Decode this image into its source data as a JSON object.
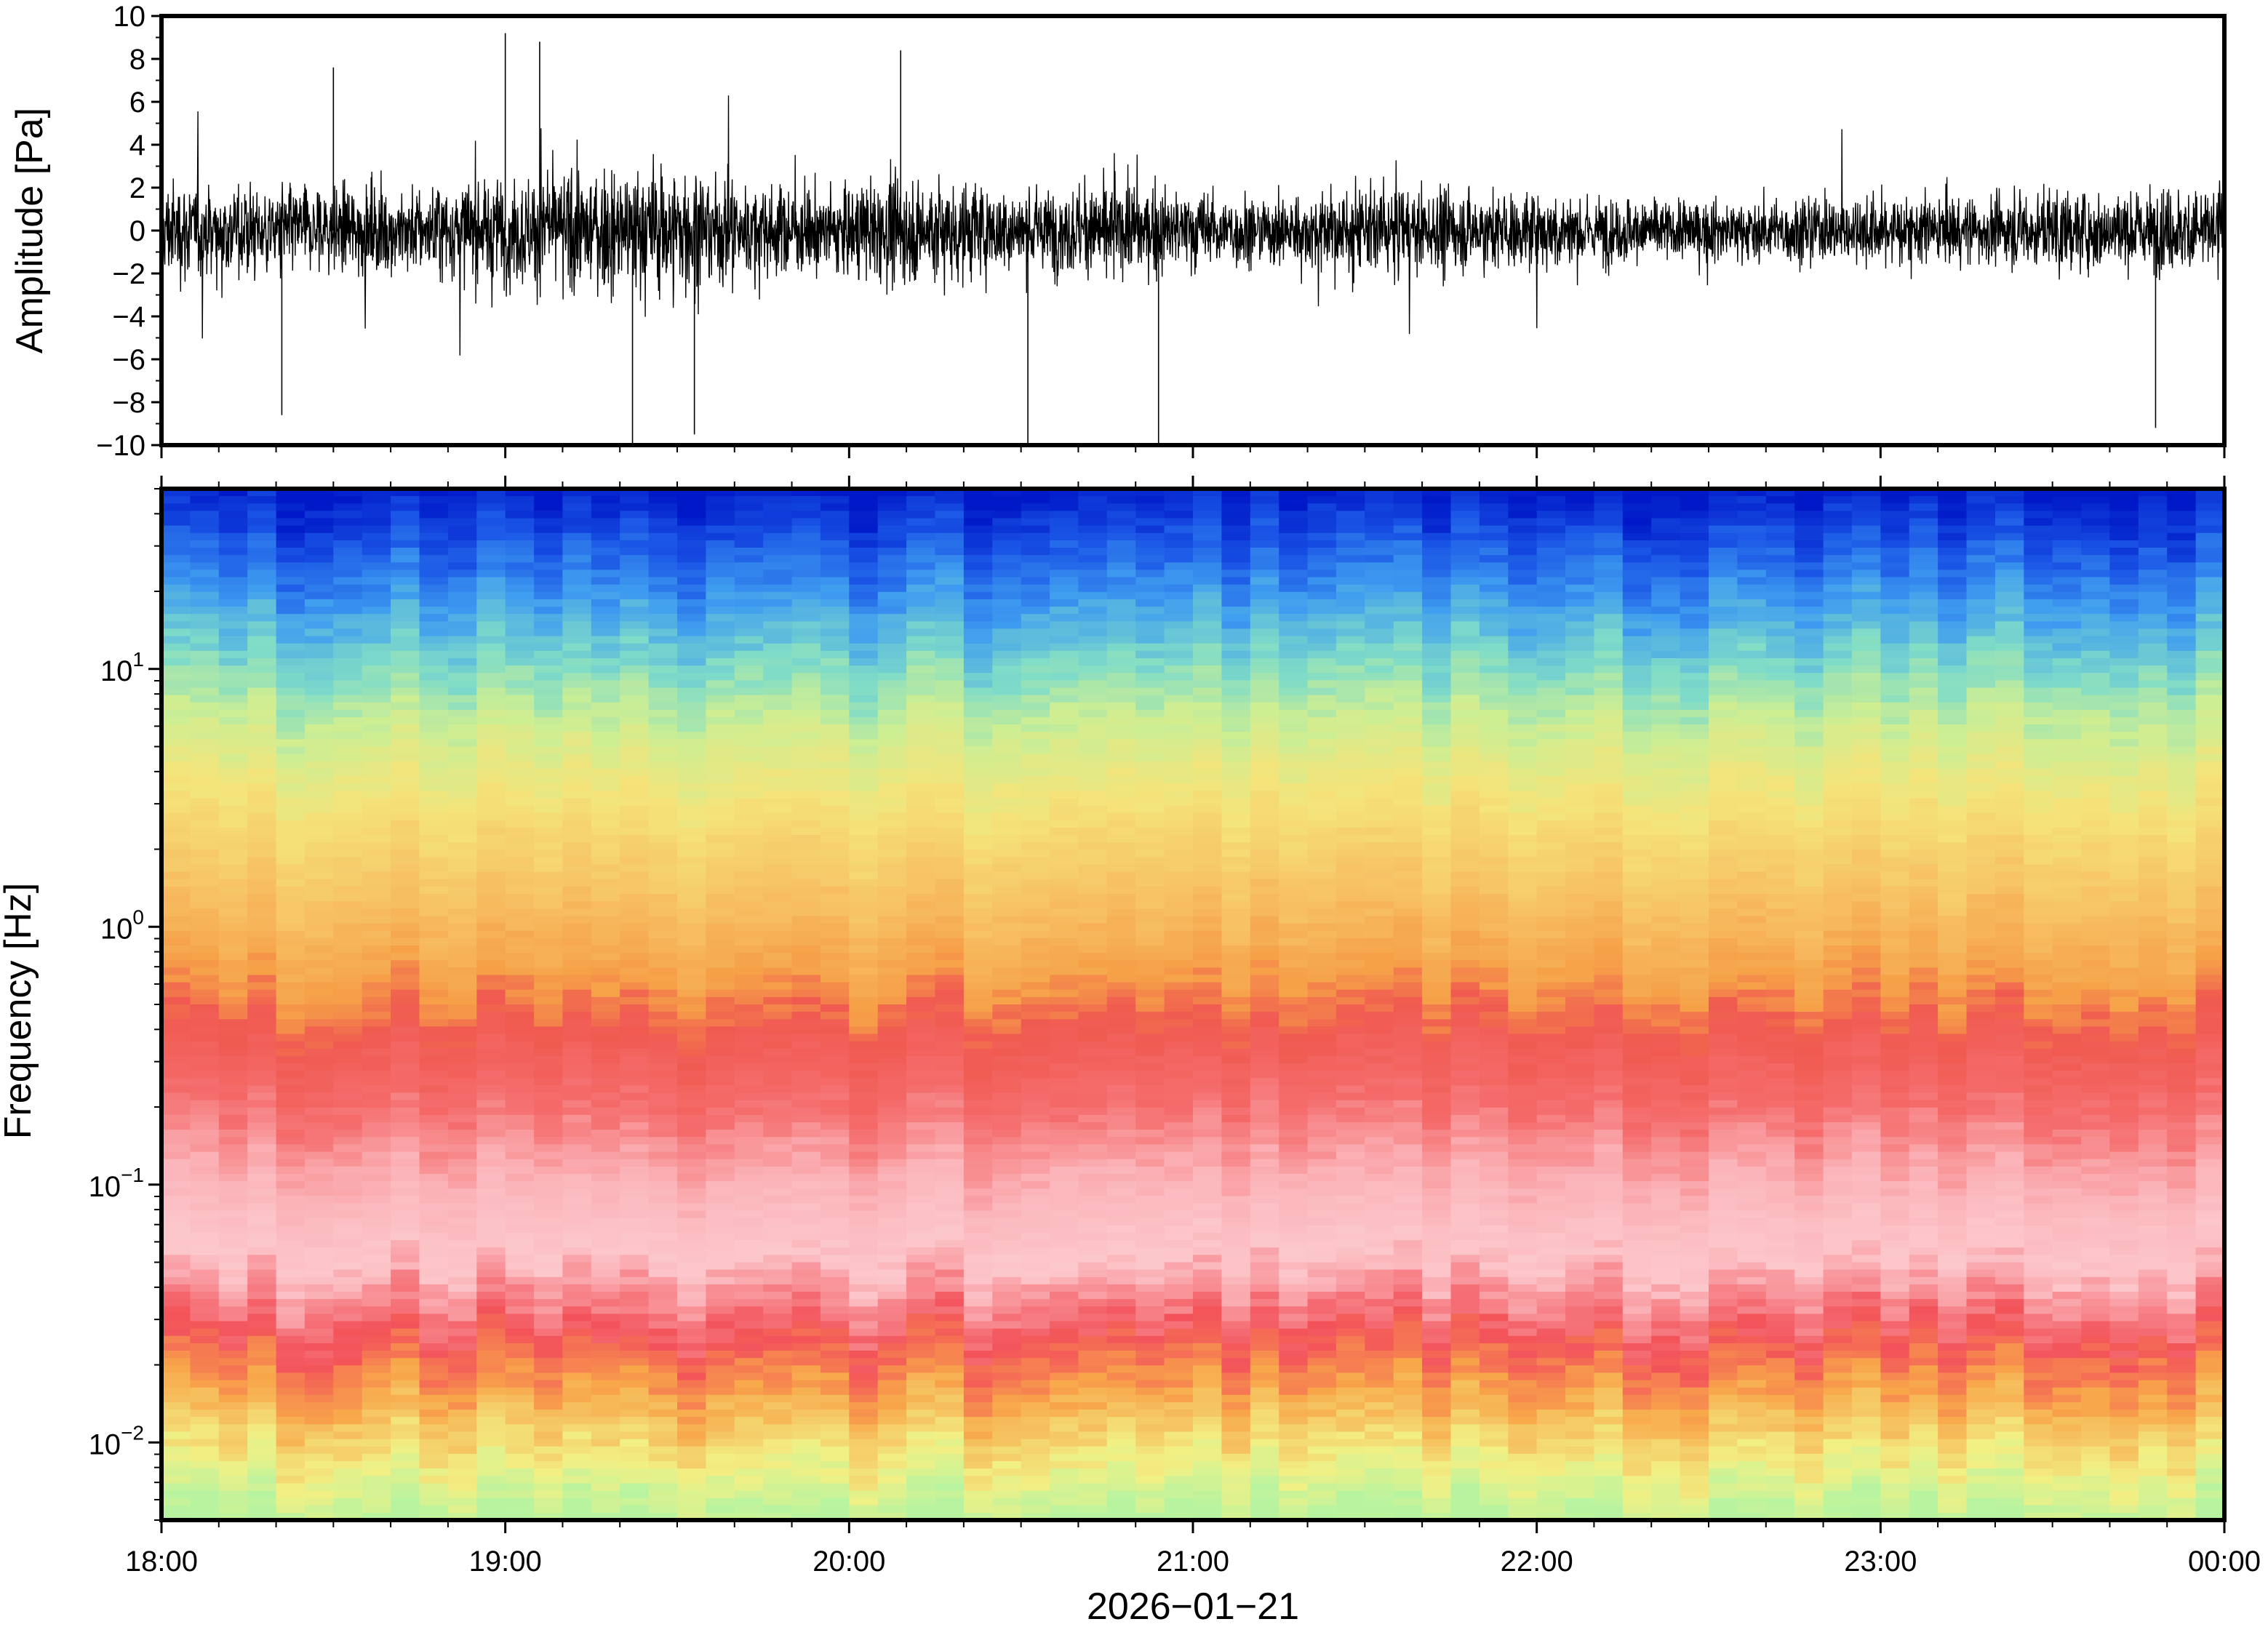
{
  "chart_data": [
    {
      "type": "line",
      "title": "",
      "xlabel": "",
      "ylabel": "Amplitude [Pa]",
      "ylim": [
        -10,
        10
      ],
      "yticks": [
        "10",
        "8",
        "6",
        "4",
        "2",
        "0",
        "−2",
        "−4",
        "−6",
        "−8",
        "−10"
      ],
      "ytick_values": [
        10,
        8,
        6,
        4,
        2,
        0,
        -2,
        -4,
        -6,
        -8,
        -10
      ],
      "xlim": [
        "18:00",
        "00:00"
      ],
      "grid": false,
      "series_color": "#000000",
      "envelope": {
        "x_hours": [
          18.0,
          18.25,
          18.5,
          18.75,
          19.0,
          19.25,
          19.5,
          19.75,
          20.0,
          20.25,
          20.5,
          20.75,
          21.0,
          21.25,
          21.5,
          21.75,
          22.0,
          22.25,
          22.5,
          22.75,
          23.0,
          23.25,
          23.5,
          23.75,
          24.0
        ],
        "typical_amplitude": [
          3.0,
          2.8,
          2.6,
          2.7,
          3.3,
          3.6,
          4.2,
          2.6,
          2.7,
          3.4,
          2.4,
          2.8,
          2.4,
          2.1,
          2.6,
          2.4,
          2.3,
          2.0,
          1.8,
          1.9,
          2.2,
          2.0,
          2.4,
          2.3,
          3.0
        ]
      },
      "peaks": [
        {
          "x_hours": 19.0,
          "value": 9.2
        },
        {
          "x_hours": 19.1,
          "value": 8.8
        },
        {
          "x_hours": 19.37,
          "value": -10
        },
        {
          "x_hours": 19.55,
          "value": -9.5
        },
        {
          "x_hours": 20.15,
          "value": 8.4
        },
        {
          "x_hours": 20.52,
          "value": -10
        },
        {
          "x_hours": 20.9,
          "value": -10
        },
        {
          "x_hours": 23.8,
          "value": -9.2
        },
        {
          "x_hours": 18.35,
          "value": -8.6
        },
        {
          "x_hours": 18.5,
          "value": 7.6
        }
      ]
    },
    {
      "type": "heatmap",
      "title": "",
      "xlabel": "2026−01−21",
      "ylabel": "Frequency [Hz]",
      "yscale": "log",
      "ylim": [
        0.005,
        50
      ],
      "yticks": [
        {
          "value": 10,
          "base": "10",
          "exp": "1"
        },
        {
          "value": 1,
          "base": "10",
          "exp": "0"
        },
        {
          "value": 0.1,
          "base": "10",
          "exp": "−1"
        },
        {
          "value": 0.01,
          "base": "10",
          "exp": "−2"
        }
      ],
      "xticks": [
        "18:00",
        "19:00",
        "20:00",
        "21:00",
        "22:00",
        "23:00",
        "00:00"
      ],
      "xtick_hours": [
        18,
        19,
        20,
        21,
        22,
        23,
        24
      ],
      "colormap": "spectral",
      "color_bands": [
        {
          "freq_hz": 50,
          "color": "#0019c8"
        },
        {
          "freq_hz": 30,
          "color": "#1a55e6"
        },
        {
          "freq_hz": 18,
          "color": "#3f9df0"
        },
        {
          "freq_hz": 10,
          "color": "#7fdcc8"
        },
        {
          "freq_hz": 6,
          "color": "#cdee93"
        },
        {
          "freq_hz": 3,
          "color": "#f5e47a"
        },
        {
          "freq_hz": 1.2,
          "color": "#f7c063"
        },
        {
          "freq_hz": 0.6,
          "color": "#f6a048"
        },
        {
          "freq_hz": 0.4,
          "color": "#f05a50"
        },
        {
          "freq_hz": 0.2,
          "color": "#f56c6c"
        },
        {
          "freq_hz": 0.1,
          "color": "#fbb3b8"
        },
        {
          "freq_hz": 0.05,
          "color": "#fcc8cc"
        },
        {
          "freq_hz": 0.025,
          "color": "#f3525a"
        },
        {
          "freq_hz": 0.015,
          "color": "#f8a64a"
        },
        {
          "freq_hz": 0.008,
          "color": "#f2f084"
        },
        {
          "freq_hz": 0.005,
          "color": "#b8f4a0"
        }
      ]
    }
  ]
}
